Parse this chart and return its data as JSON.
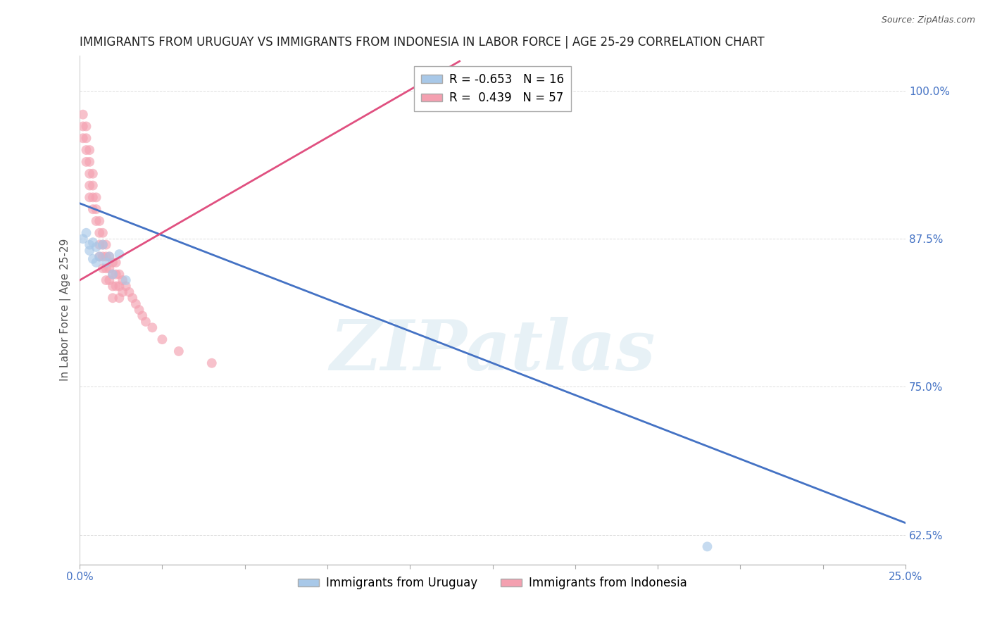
{
  "title": "IMMIGRANTS FROM URUGUAY VS IMMIGRANTS FROM INDONESIA IN LABOR FORCE | AGE 25-29 CORRELATION CHART",
  "source": "Source: ZipAtlas.com",
  "ylabel": "In Labor Force | Age 25-29",
  "xlim": [
    0.0,
    0.25
  ],
  "ylim": [
    0.6,
    1.03
  ],
  "xticks": [
    0.0,
    0.025,
    0.05,
    0.075,
    0.1,
    0.125,
    0.15,
    0.175,
    0.2,
    0.225,
    0.25
  ],
  "xtick_labels_show": [
    "0.0%",
    "",
    "",
    "",
    "",
    "",
    "",
    "",
    "",
    "",
    "25.0%"
  ],
  "yticks": [
    0.625,
    0.75,
    0.875,
    1.0
  ],
  "ytick_labels": [
    "62.5%",
    "75.0%",
    "87.5%",
    "100.0%"
  ],
  "uruguay_color": "#a8c8e8",
  "indonesia_color": "#f4a0b0",
  "uruguay_R": -0.653,
  "uruguay_N": 16,
  "indonesia_R": 0.439,
  "indonesia_N": 57,
  "legend_label_uruguay": "Immigrants from Uruguay",
  "legend_label_indonesia": "Immigrants from Indonesia",
  "watermark": "ZIPatlas",
  "background_color": "#ffffff",
  "grid_color": "#dddddd",
  "uruguay_scatter_x": [
    0.001,
    0.002,
    0.003,
    0.003,
    0.004,
    0.004,
    0.005,
    0.005,
    0.006,
    0.007,
    0.008,
    0.009,
    0.01,
    0.012,
    0.014,
    0.19
  ],
  "uruguay_scatter_y": [
    0.875,
    0.88,
    0.87,
    0.865,
    0.872,
    0.858,
    0.868,
    0.855,
    0.86,
    0.87,
    0.855,
    0.86,
    0.845,
    0.862,
    0.84,
    0.615
  ],
  "indonesia_scatter_x": [
    0.001,
    0.001,
    0.001,
    0.002,
    0.002,
    0.002,
    0.002,
    0.003,
    0.003,
    0.003,
    0.003,
    0.003,
    0.004,
    0.004,
    0.004,
    0.004,
    0.005,
    0.005,
    0.005,
    0.006,
    0.006,
    0.006,
    0.006,
    0.007,
    0.007,
    0.007,
    0.007,
    0.008,
    0.008,
    0.008,
    0.008,
    0.009,
    0.009,
    0.009,
    0.01,
    0.01,
    0.01,
    0.01,
    0.011,
    0.011,
    0.011,
    0.012,
    0.012,
    0.012,
    0.013,
    0.013,
    0.014,
    0.015,
    0.016,
    0.017,
    0.018,
    0.019,
    0.02,
    0.022,
    0.025,
    0.03,
    0.04
  ],
  "indonesia_scatter_y": [
    0.97,
    0.98,
    0.96,
    0.96,
    0.97,
    0.95,
    0.94,
    0.95,
    0.94,
    0.93,
    0.92,
    0.91,
    0.93,
    0.92,
    0.91,
    0.9,
    0.91,
    0.9,
    0.89,
    0.89,
    0.88,
    0.87,
    0.86,
    0.88,
    0.87,
    0.86,
    0.85,
    0.87,
    0.86,
    0.85,
    0.84,
    0.86,
    0.85,
    0.84,
    0.855,
    0.845,
    0.835,
    0.825,
    0.855,
    0.845,
    0.835,
    0.845,
    0.835,
    0.825,
    0.84,
    0.83,
    0.835,
    0.83,
    0.825,
    0.82,
    0.815,
    0.81,
    0.805,
    0.8,
    0.79,
    0.78,
    0.77
  ],
  "uruguay_line_x": [
    0.0,
    0.25
  ],
  "uruguay_line_y": [
    0.905,
    0.635
  ],
  "indonesia_line_x": [
    0.0,
    0.115
  ],
  "indonesia_line_y": [
    0.84,
    1.025
  ],
  "title_fontsize": 12,
  "axis_label_fontsize": 11,
  "tick_fontsize": 11,
  "legend_fontsize": 12,
  "marker_size": 10,
  "line_width": 2.0,
  "uruguay_line_color": "#4472c4",
  "indonesia_line_color": "#e05080"
}
